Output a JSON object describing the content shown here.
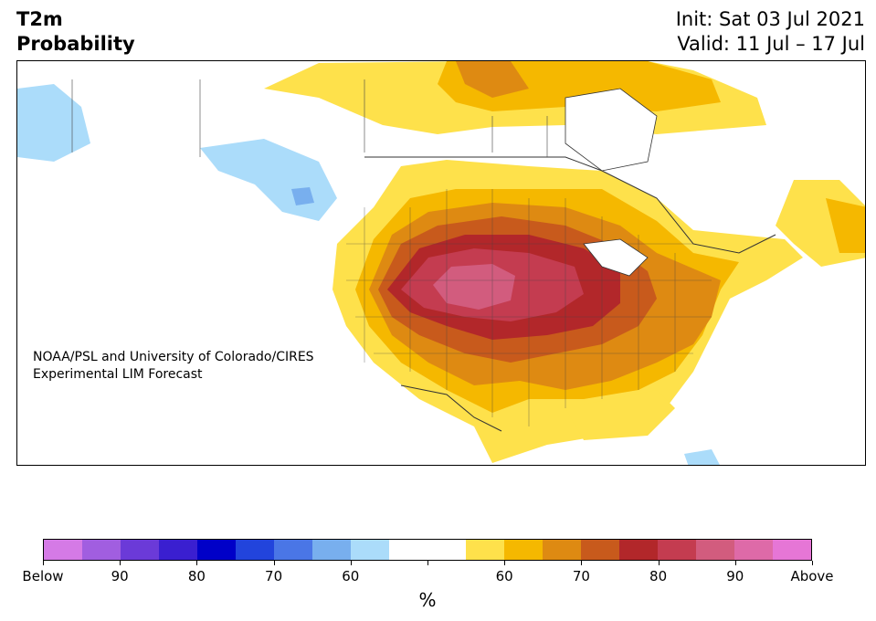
{
  "title": {
    "line1": "T2m",
    "line2": "Probability"
  },
  "dates": {
    "init": "Init: Sat 03 Jul 2021",
    "valid": "Valid: 11 Jul – 17 Jul"
  },
  "credit": {
    "line1": "NOAA/PSL and University of Colorado/CIRES",
    "line2": "Experimental LIM Forecast"
  },
  "colorbar": {
    "colors": [
      "#d57ae6",
      "#a15ee0",
      "#6b3ad8",
      "#3a1fd0",
      "#0000c8",
      "#2244dc",
      "#4a76e6",
      "#78afee",
      "#abdcfa",
      "#ffffff",
      "#ffffff",
      "#fee14b",
      "#f5b800",
      "#de8a12",
      "#c85a1c",
      "#b2272a",
      "#c43c50",
      "#d25c7e",
      "#de6aa8",
      "#e676d6"
    ],
    "labels": [
      "Below",
      "90",
      "80",
      "70",
      "60",
      "",
      "60",
      "70",
      "80",
      "90",
      "Above"
    ],
    "unit": "%"
  }
}
